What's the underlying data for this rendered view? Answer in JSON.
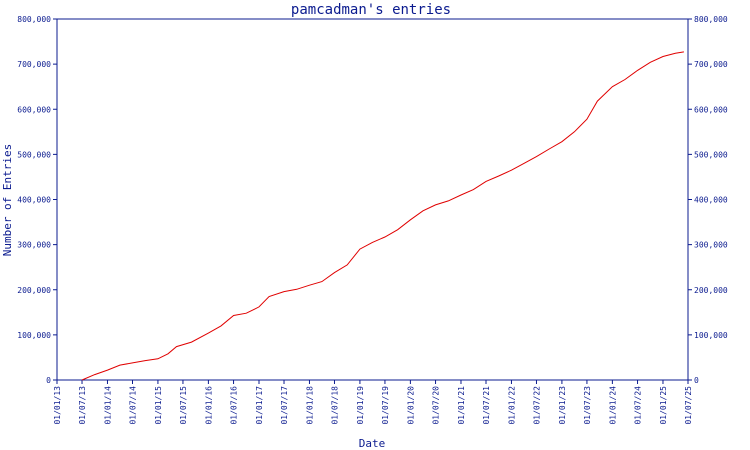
{
  "chart_data": {
    "type": "line",
    "title": "pamcadman's entries",
    "xlabel": "Date",
    "ylabel": "Number of Entries",
    "ylim": [
      0,
      800000
    ],
    "y_ticks": [
      0,
      100000,
      200000,
      300000,
      400000,
      500000,
      600000,
      700000,
      800000
    ],
    "y_tick_labels": [
      "0",
      "100,000",
      "200,000",
      "300,000",
      "400,000",
      "500,000",
      "600,000",
      "700,000",
      "800,000"
    ],
    "y_axis_both_sides": true,
    "xlim": [
      "2013-01-01",
      "2025-07-01"
    ],
    "x_ticks": [
      "2013-01-01",
      "2013-07-01",
      "2014-01-01",
      "2014-07-01",
      "2015-01-01",
      "2015-07-01",
      "2016-01-01",
      "2016-07-01",
      "2017-01-01",
      "2017-07-01",
      "2018-01-01",
      "2018-07-01",
      "2019-01-01",
      "2019-07-01",
      "2020-01-01",
      "2020-07-01",
      "2021-01-01",
      "2021-07-01",
      "2022-01-01",
      "2022-07-01",
      "2023-01-01",
      "2023-07-01",
      "2024-01-01",
      "2024-07-01",
      "2025-01-01",
      "2025-07-01"
    ],
    "x_tick_labels": [
      "01/01/13",
      "01/07/13",
      "01/01/14",
      "01/07/14",
      "01/01/15",
      "01/07/15",
      "01/01/16",
      "01/07/16",
      "01/01/17",
      "01/07/17",
      "01/01/18",
      "01/07/18",
      "01/01/19",
      "01/07/19",
      "01/01/20",
      "01/07/20",
      "01/01/21",
      "01/07/21",
      "01/01/22",
      "01/07/22",
      "01/01/23",
      "01/07/23",
      "01/01/24",
      "01/07/24",
      "01/01/25",
      "01/07/25"
    ],
    "grid": false,
    "colors": {
      "axis": "#0b1b8f",
      "series": "#e00000"
    },
    "series": [
      {
        "points": [
          [
            "2013-07-01",
            0
          ],
          [
            "2013-10-01",
            12000
          ],
          [
            "2014-01-01",
            22000
          ],
          [
            "2014-04-01",
            33000
          ],
          [
            "2014-07-01",
            38000
          ],
          [
            "2014-10-01",
            43000
          ],
          [
            "2015-01-01",
            47000
          ],
          [
            "2015-03-15",
            58000
          ],
          [
            "2015-05-15",
            74000
          ],
          [
            "2015-09-01",
            84000
          ],
          [
            "2016-01-01",
            104000
          ],
          [
            "2016-04-01",
            120000
          ],
          [
            "2016-07-01",
            143000
          ],
          [
            "2016-10-01",
            148000
          ],
          [
            "2017-01-01",
            162000
          ],
          [
            "2017-03-15",
            185000
          ],
          [
            "2017-07-01",
            196000
          ],
          [
            "2017-10-01",
            201000
          ],
          [
            "2018-01-01",
            210000
          ],
          [
            "2018-04-01",
            218000
          ],
          [
            "2018-07-01",
            238000
          ],
          [
            "2018-10-01",
            255000
          ],
          [
            "2019-01-01",
            290000
          ],
          [
            "2019-04-01",
            305000
          ],
          [
            "2019-07-01",
            317000
          ],
          [
            "2019-10-01",
            333000
          ],
          [
            "2020-01-01",
            355000
          ],
          [
            "2020-04-01",
            375000
          ],
          [
            "2020-07-01",
            388000
          ],
          [
            "2020-10-01",
            397000
          ],
          [
            "2021-01-01",
            410000
          ],
          [
            "2021-04-01",
            422000
          ],
          [
            "2021-07-01",
            440000
          ],
          [
            "2021-10-01",
            452000
          ],
          [
            "2022-01-01",
            465000
          ],
          [
            "2022-04-01",
            480000
          ],
          [
            "2022-07-01",
            495000
          ],
          [
            "2022-10-01",
            512000
          ],
          [
            "2023-01-01",
            528000
          ],
          [
            "2023-04-01",
            550000
          ],
          [
            "2023-07-01",
            578000
          ],
          [
            "2023-09-15",
            618000
          ],
          [
            "2024-01-01",
            650000
          ],
          [
            "2024-04-01",
            666000
          ],
          [
            "2024-07-01",
            686000
          ],
          [
            "2024-10-01",
            704000
          ],
          [
            "2025-01-01",
            717000
          ],
          [
            "2025-04-01",
            724000
          ],
          [
            "2025-06-01",
            727000
          ]
        ]
      }
    ]
  }
}
